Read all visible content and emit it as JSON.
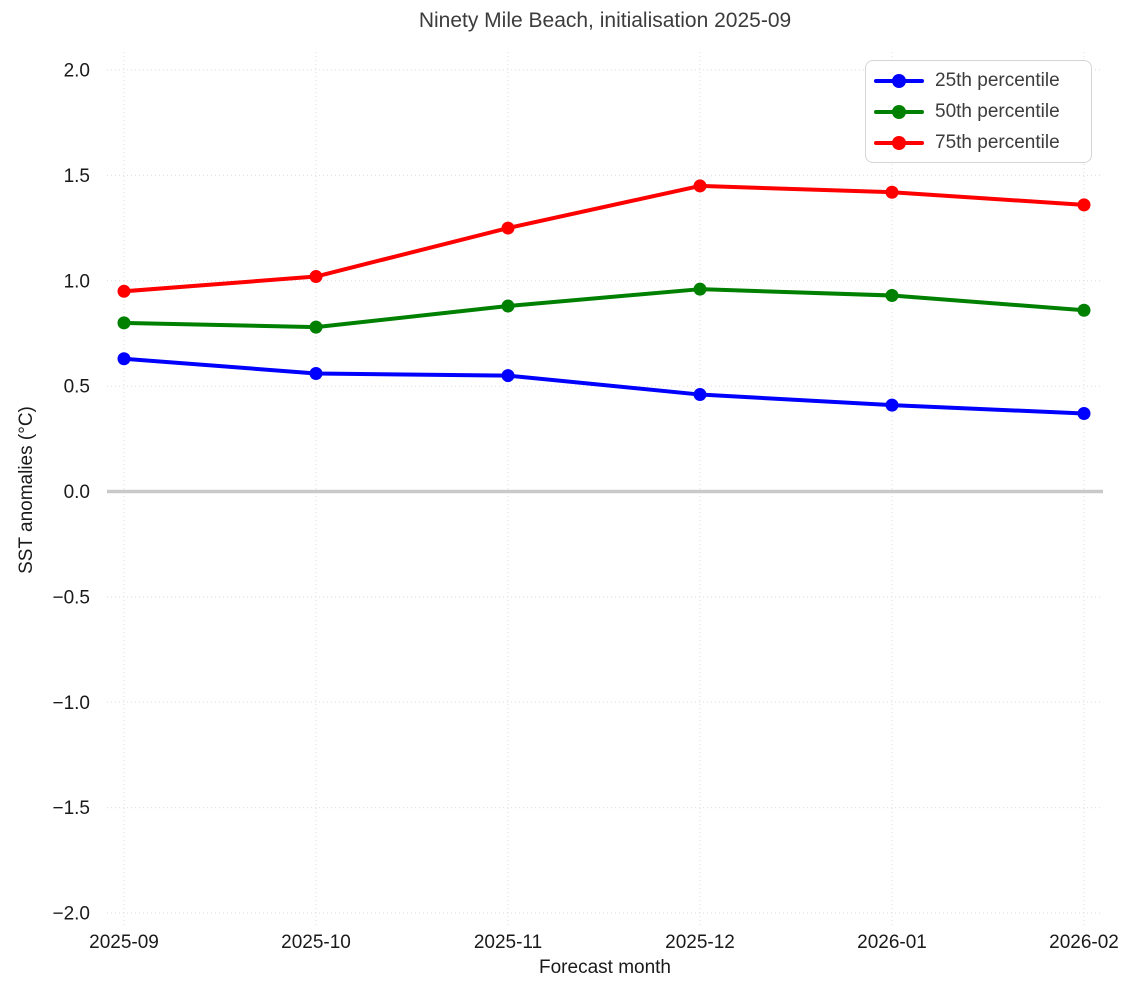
{
  "chart_data": {
    "type": "line",
    "title": "Ninety Mile Beach, initialisation 2025-09",
    "xlabel": "Forecast month",
    "ylabel": "SST anomalies (°C)",
    "categories": [
      "2025-09",
      "2025-10",
      "2025-11",
      "2025-12",
      "2026-01",
      "2026-02"
    ],
    "series": [
      {
        "name": "25th percentile",
        "color": "#0000ff",
        "values": [
          0.63,
          0.56,
          0.55,
          0.46,
          0.41,
          0.37
        ]
      },
      {
        "name": "50th percentile",
        "color": "#008000",
        "values": [
          0.8,
          0.78,
          0.88,
          0.96,
          0.93,
          0.86
        ]
      },
      {
        "name": "75th percentile",
        "color": "#ff0000",
        "values": [
          0.95,
          1.02,
          1.25,
          1.45,
          1.42,
          1.36
        ]
      }
    ],
    "ylim": [
      -2.0,
      2.0
    ],
    "yticks": [
      {
        "value": 2.0,
        "label": "2.0"
      },
      {
        "value": 1.5,
        "label": "1.5"
      },
      {
        "value": 1.0,
        "label": "1.0"
      },
      {
        "value": 0.5,
        "label": "0.5"
      },
      {
        "value": 0.0,
        "label": "0.0"
      },
      {
        "value": -0.5,
        "label": "−0.5"
      },
      {
        "value": -1.0,
        "label": "−1.0"
      },
      {
        "value": -1.5,
        "label": "−1.5"
      },
      {
        "value": -2.0,
        "label": "−2.0"
      }
    ],
    "grid": true,
    "zero_line": true,
    "legend_position": "top-right",
    "colors": {
      "grid": "#e2e2e2",
      "zero_line": "#c9c9c9",
      "title_text": "#3c3c3c",
      "tick_text": "#1a1a1a",
      "legend_border": "#d5d5d5",
      "background": "#ffffff"
    }
  }
}
